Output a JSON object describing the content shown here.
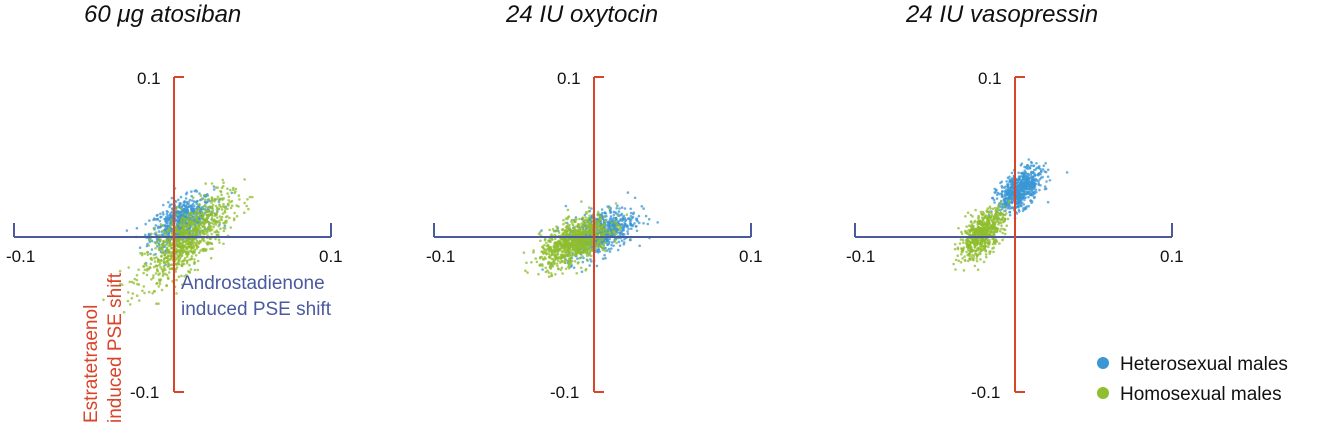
{
  "colors": {
    "heterosexual": "#3a97d4",
    "homosexual": "#8fbe2e",
    "x_axis": "#4a5a9e",
    "y_axis": "#d9442b"
  },
  "legend": {
    "placement": "bottom-right",
    "items": [
      {
        "label": "Heterosexual males",
        "color": "#3a97d4"
      },
      {
        "label": "Homosexual males",
        "color": "#8fbe2e"
      }
    ]
  },
  "axis_labels": {
    "x_line1": "Androstadienone",
    "x_line2": "induced PSE shift",
    "y_line1": "Estratetraenol",
    "y_line2": "induced PSE shift"
  },
  "chart_data": [
    {
      "type": "scatter",
      "title": "60 μg atosiban",
      "xlim": [
        -0.1,
        0.1
      ],
      "ylim": [
        -0.1,
        0.1
      ],
      "x_ticks": [
        "-0.1",
        "0.1"
      ],
      "y_ticks": [
        "0.1",
        "-0.1"
      ],
      "grid": false,
      "series": [
        {
          "name": "Heterosexual males",
          "center": [
            0.005,
            0.01
          ],
          "spread": [
            0.01,
            0.008
          ],
          "corr": 0.5,
          "count": 650
        },
        {
          "name": "Homosexual males",
          "center": [
            0.008,
            -0.002
          ],
          "spread": [
            0.014,
            0.014
          ],
          "corr": 0.75,
          "count": 900
        }
      ]
    },
    {
      "type": "scatter",
      "title": "24 IU oxytocin",
      "xlim": [
        -0.1,
        0.1
      ],
      "ylim": [
        -0.1,
        0.1
      ],
      "x_ticks": [
        "-0.1",
        "0.1"
      ],
      "y_ticks": [
        "0.1",
        "-0.1"
      ],
      "grid": false,
      "series": [
        {
          "name": "Heterosexual males",
          "center": [
            0.004,
            0.003
          ],
          "spread": [
            0.011,
            0.008
          ],
          "corr": 0.5,
          "count": 650
        },
        {
          "name": "Homosexual males",
          "center": [
            -0.012,
            -0.003
          ],
          "spread": [
            0.011,
            0.008
          ],
          "corr": 0.55,
          "count": 900
        }
      ]
    },
    {
      "type": "scatter",
      "title": "24 IU vasopressin",
      "xlim": [
        -0.1,
        0.1
      ],
      "ylim": [
        -0.1,
        0.1
      ],
      "x_ticks": [
        "-0.1",
        "0.1"
      ],
      "y_ticks": [
        "0.1",
        "-0.1"
      ],
      "grid": false,
      "series": [
        {
          "name": "Heterosexual males",
          "center": [
            0.003,
            0.03
          ],
          "spread": [
            0.007,
            0.007
          ],
          "corr": 0.55,
          "count": 650
        },
        {
          "name": "Homosexual males",
          "center": [
            -0.021,
            0.002
          ],
          "spread": [
            0.007,
            0.008
          ],
          "corr": 0.6,
          "count": 650
        }
      ]
    }
  ]
}
